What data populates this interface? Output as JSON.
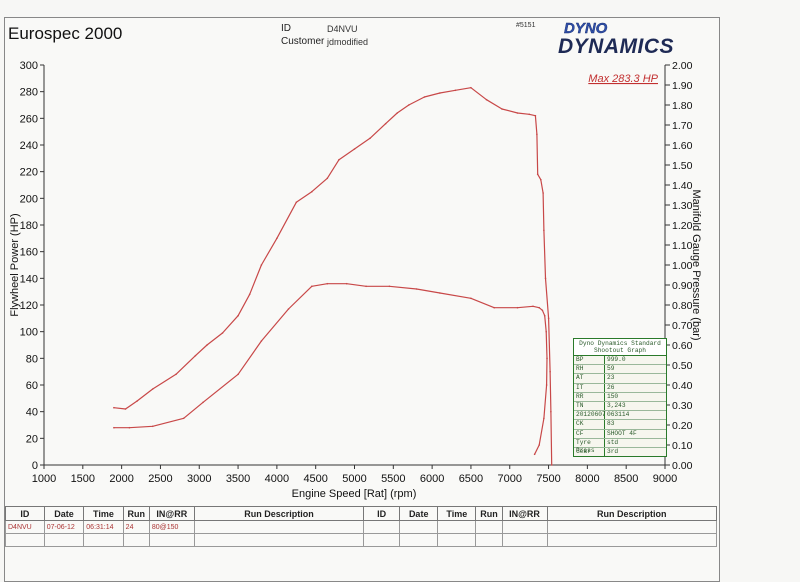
{
  "header": {
    "title": "Eurospec 2000",
    "id_label": "ID",
    "id_value": "D4NVU",
    "customer_label": "Customer",
    "customer_value": "jdmodified",
    "ref": "#5151",
    "logo_top": "DYNO",
    "logo_bottom": "DYNAMICS"
  },
  "chart_data": {
    "type": "line",
    "xlabel": "Engine Speed [Rat] (rpm)",
    "ylabel": "Flywheel Power (HP)",
    "y2label": "Manifold Gauge Pressure (bar)",
    "annotation": "Max 283.3 HP",
    "xlim": [
      1000,
      9000
    ],
    "ylim": [
      0,
      300
    ],
    "y2lim": [
      0.0,
      2.0
    ],
    "x_ticks": [
      "1000",
      "1500",
      "2000",
      "2500",
      "3000",
      "3500",
      "4000",
      "4500",
      "5000",
      "5500",
      "6000",
      "6500",
      "7000",
      "7500",
      "8000",
      "8500",
      "9000"
    ],
    "y_ticks": [
      "0",
      "20",
      "40",
      "60",
      "80",
      "100",
      "120",
      "140",
      "160",
      "180",
      "200",
      "220",
      "240",
      "260",
      "280",
      "300"
    ],
    "y2_ticks": [
      "0.00",
      "0.10",
      "0.20",
      "0.30",
      "0.40",
      "0.50",
      "0.60",
      "0.70",
      "0.80",
      "0.90",
      "1.00",
      "1.10",
      "1.20",
      "1.30",
      "1.40",
      "1.50",
      "1.60",
      "1.70",
      "1.80",
      "1.90",
      "2.00"
    ],
    "grid": false,
    "color": "#c84848",
    "series": [
      {
        "axis": "left",
        "x": [
          1900,
          2050,
          2200,
          2400,
          2700,
          2950,
          3100,
          3300,
          3500,
          3650,
          3800,
          4000,
          4250,
          4450,
          4650,
          4800,
          5000,
          5200,
          5400,
          5550,
          5700,
          5900,
          6100,
          6300,
          6500,
          6700,
          6900,
          7100,
          7250,
          7330,
          7350,
          7360,
          7400,
          7430,
          7440,
          7460,
          7500,
          7520,
          7530,
          7540
        ],
        "values": [
          43,
          42,
          48,
          57,
          68,
          82,
          90,
          99,
          112,
          128,
          150,
          170,
          197,
          205,
          215,
          229,
          237,
          245,
          256,
          264,
          270,
          276,
          279,
          281,
          283,
          274,
          267,
          264,
          263,
          262,
          248,
          218,
          214,
          204,
          176,
          140,
          110,
          70,
          40,
          0
        ]
      },
      {
        "axis": "left",
        "x": [
          1900,
          2100,
          2400,
          2800,
          3050,
          3500,
          3800,
          4150,
          4450,
          4650,
          4900,
          5150,
          5450,
          5800,
          6100,
          6500,
          6800,
          7100,
          7300,
          7380,
          7420,
          7450,
          7470,
          7480,
          7475,
          7440,
          7380,
          7320
        ],
        "values": [
          28,
          28,
          29,
          35,
          47,
          68,
          93,
          117,
          134,
          136,
          136,
          134,
          134,
          132,
          129,
          125,
          118,
          118,
          119,
          118,
          116,
          112,
          100,
          80,
          60,
          35,
          15,
          8
        ]
      }
    ]
  },
  "info_box": {
    "title": "Dyno Dynamics Standard Shootout Graph",
    "rows": [
      {
        "k": "BP",
        "v": "999.0"
      },
      {
        "k": "RH",
        "v": "59"
      },
      {
        "k": "AT",
        "v": "23"
      },
      {
        "k": "IT",
        "v": "26"
      },
      {
        "k": "RR",
        "v": "150"
      },
      {
        "k": "TN",
        "v": "3,243"
      },
      {
        "k": "20120607",
        "v": "063114"
      },
      {
        "k": "CK",
        "v": "83"
      },
      {
        "k": "CF",
        "v": "SHOOT 4F"
      },
      {
        "k": "Tyre Press",
        "v": "std"
      },
      {
        "k": "Gear",
        "v": "3rd"
      }
    ]
  },
  "run_table": {
    "headers": [
      "ID",
      "Date",
      "Time",
      "Run",
      "IN@RR",
      "Run Description",
      "ID",
      "Date",
      "Time",
      "Run",
      "IN@RR",
      "Run Description"
    ],
    "rows": [
      [
        "D4NVU",
        "07-06-12",
        "06:31:14",
        "24",
        "80@150",
        "",
        "",
        "",
        "",
        "",
        "",
        ""
      ]
    ]
  }
}
